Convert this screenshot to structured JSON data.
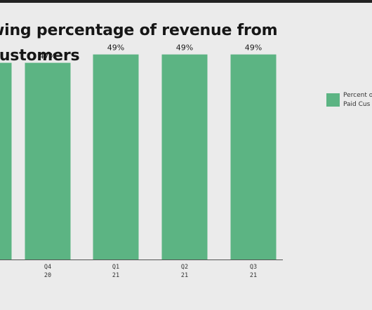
{
  "title_lines": [
    "wing percentage of revenue from",
    "customers"
  ],
  "legend": {
    "label_lines": [
      "Percent o",
      "Paid Cus"
    ]
  },
  "colors": {
    "bar": "#5cb483",
    "background": "#ebebeb",
    "text": "#161616"
  },
  "chart_data": {
    "type": "bar",
    "title": "wing percentage of revenue from customers",
    "categories": [
      {
        "line1": "",
        "line2": ""
      },
      {
        "line1": "Q4",
        "line2": "20"
      },
      {
        "line1": "Q1",
        "line2": "21"
      },
      {
        "line1": "Q2",
        "line2": "21"
      },
      {
        "line1": "Q3",
        "line2": "21"
      }
    ],
    "series": [
      {
        "values": [
          47,
          47,
          49,
          49,
          49
        ],
        "labels": [
          "",
          "47%",
          "49%",
          "49%",
          "49%"
        ]
      }
    ],
    "ylim": [
      0,
      60
    ],
    "grid": false,
    "legend_position": "right"
  }
}
